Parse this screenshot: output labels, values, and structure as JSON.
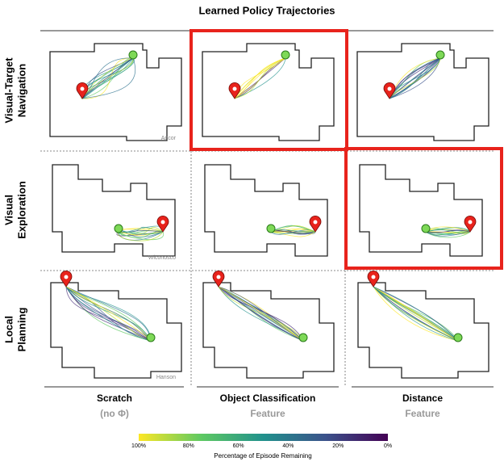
{
  "title": "Learned Policy Trajectories",
  "rows": [
    [
      "Visual-Target",
      "Navigation"
    ],
    [
      "Visual",
      "Exploration"
    ],
    [
      "Local",
      "Planning"
    ]
  ],
  "columns": [
    {
      "title": "Scratch",
      "subtitle": "(no Φ)"
    },
    {
      "title": "Object Classification",
      "subtitle": "Feature"
    },
    {
      "title": "Distance",
      "subtitle": "Feature"
    }
  ],
  "environments": [
    "Ancor",
    "Wiconosco",
    "Hanson"
  ],
  "colorbar": {
    "label": "Percentage of Episode Remaining",
    "ticks": [
      "100%",
      "80%",
      "60%",
      "40%",
      "20%",
      "0%"
    ]
  }
}
